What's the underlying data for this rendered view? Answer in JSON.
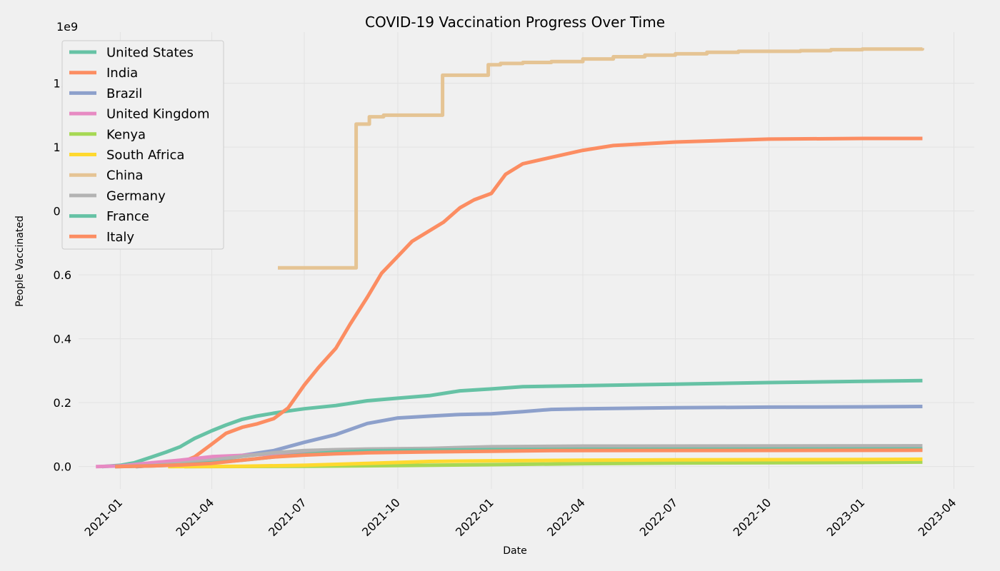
{
  "chart_data": {
    "type": "line",
    "title": "COVID-19 Vaccination Progress Over Time",
    "xlabel": "Date",
    "ylabel": "People Vaccinated",
    "y_multiplier_label": "1e9",
    "xlim": [
      "2020-11-21",
      "2023-04-21"
    ],
    "ylim": [
      -0.07,
      1.36
    ],
    "grid": true,
    "legend_position": "upper-left",
    "x_ticks": [
      "2021-01",
      "2021-04",
      "2021-07",
      "2021-10",
      "2022-01",
      "2022-04",
      "2022-07",
      "2022-10",
      "2023-01",
      "2023-04"
    ],
    "y_ticks": [
      "0.0",
      "0.2",
      "0.4",
      "0.6",
      "0.8",
      "1.0",
      "1.2"
    ],
    "y_tick_values": [
      0,
      0.2,
      0.4,
      0.6,
      0.8,
      1.0,
      1.2
    ],
    "series": [
      {
        "name": "United States",
        "color": "#66c2a5",
        "step": false,
        "points": [
          [
            "2020-12-14",
            0.0
          ],
          [
            "2021-01-01",
            0.004
          ],
          [
            "2021-01-15",
            0.012
          ],
          [
            "2021-02-01",
            0.03
          ],
          [
            "2021-02-15",
            0.045
          ],
          [
            "2021-03-01",
            0.062
          ],
          [
            "2021-03-15",
            0.088
          ],
          [
            "2021-04-01",
            0.112
          ],
          [
            "2021-04-15",
            0.13
          ],
          [
            "2021-05-01",
            0.148
          ],
          [
            "2021-05-15",
            0.158
          ],
          [
            "2021-06-01",
            0.167
          ],
          [
            "2021-06-15",
            0.174
          ],
          [
            "2021-07-01",
            0.181
          ],
          [
            "2021-08-01",
            0.191
          ],
          [
            "2021-09-01",
            0.206
          ],
          [
            "2021-10-01",
            0.214
          ],
          [
            "2021-11-01",
            0.222
          ],
          [
            "2021-12-01",
            0.237
          ],
          [
            "2022-01-01",
            0.243
          ],
          [
            "2022-02-01",
            0.25
          ],
          [
            "2022-04-01",
            0.253
          ],
          [
            "2022-07-01",
            0.258
          ],
          [
            "2022-10-01",
            0.263
          ],
          [
            "2023-01-01",
            0.267
          ],
          [
            "2023-03-01",
            0.269
          ]
        ]
      },
      {
        "name": "India",
        "color": "#fc8d62",
        "step": false,
        "points": [
          [
            "2021-01-16",
            0.0
          ],
          [
            "2021-02-01",
            0.003
          ],
          [
            "2021-02-15",
            0.008
          ],
          [
            "2021-03-01",
            0.012
          ],
          [
            "2021-03-15",
            0.03
          ],
          [
            "2021-04-01",
            0.07
          ],
          [
            "2021-04-15",
            0.104
          ],
          [
            "2021-05-01",
            0.123
          ],
          [
            "2021-05-15",
            0.133
          ],
          [
            "2021-06-01",
            0.15
          ],
          [
            "2021-06-15",
            0.183
          ],
          [
            "2021-07-01",
            0.255
          ],
          [
            "2021-07-15",
            0.31
          ],
          [
            "2021-08-01",
            0.37
          ],
          [
            "2021-08-15",
            0.445
          ],
          [
            "2021-09-01",
            0.53
          ],
          [
            "2021-09-15",
            0.605
          ],
          [
            "2021-10-01",
            0.658
          ],
          [
            "2021-10-15",
            0.705
          ],
          [
            "2021-11-01",
            0.738
          ],
          [
            "2021-11-15",
            0.765
          ],
          [
            "2021-12-01",
            0.81
          ],
          [
            "2021-12-15",
            0.835
          ],
          [
            "2022-01-01",
            0.855
          ],
          [
            "2022-01-15",
            0.915
          ],
          [
            "2022-02-01",
            0.948
          ],
          [
            "2022-03-01",
            0.968
          ],
          [
            "2022-04-01",
            0.99
          ],
          [
            "2022-05-01",
            1.005
          ],
          [
            "2022-07-01",
            1.016
          ],
          [
            "2022-10-01",
            1.025
          ],
          [
            "2023-01-01",
            1.027
          ],
          [
            "2023-03-01",
            1.027
          ]
        ]
      },
      {
        "name": "Brazil",
        "color": "#8da0cb",
        "step": false,
        "points": [
          [
            "2021-01-17",
            0.0
          ],
          [
            "2021-03-01",
            0.009
          ],
          [
            "2021-04-01",
            0.022
          ],
          [
            "2021-05-01",
            0.035
          ],
          [
            "2021-06-01",
            0.05
          ],
          [
            "2021-07-01",
            0.076
          ],
          [
            "2021-08-01",
            0.1
          ],
          [
            "2021-09-01",
            0.135
          ],
          [
            "2021-10-01",
            0.152
          ],
          [
            "2021-11-01",
            0.158
          ],
          [
            "2021-12-01",
            0.163
          ],
          [
            "2022-01-01",
            0.165
          ],
          [
            "2022-02-01",
            0.172
          ],
          [
            "2022-03-01",
            0.179
          ],
          [
            "2022-04-01",
            0.181
          ],
          [
            "2022-07-01",
            0.184
          ],
          [
            "2022-10-01",
            0.186
          ],
          [
            "2023-01-01",
            0.187
          ],
          [
            "2023-03-01",
            0.188
          ]
        ]
      },
      {
        "name": "United Kingdom",
        "color": "#e78ac3",
        "step": false,
        "points": [
          [
            "2020-12-08",
            0.0
          ],
          [
            "2021-01-01",
            0.002
          ],
          [
            "2021-02-01",
            0.012
          ],
          [
            "2021-03-01",
            0.02
          ],
          [
            "2021-04-01",
            0.031
          ],
          [
            "2021-05-01",
            0.035
          ],
          [
            "2021-06-01",
            0.04
          ],
          [
            "2021-07-01",
            0.046
          ],
          [
            "2021-09-01",
            0.048
          ],
          [
            "2022-01-01",
            0.05
          ],
          [
            "2022-06-01",
            0.051
          ],
          [
            "2023-03-01",
            0.052
          ]
        ]
      },
      {
        "name": "Kenya",
        "color": "#a6d854",
        "step": false,
        "points": [
          [
            "2021-03-05",
            0.0
          ],
          [
            "2021-07-01",
            0.001
          ],
          [
            "2021-10-01",
            0.003
          ],
          [
            "2022-01-01",
            0.006
          ],
          [
            "2022-04-01",
            0.009
          ],
          [
            "2022-07-01",
            0.011
          ],
          [
            "2023-01-01",
            0.013
          ],
          [
            "2023-03-01",
            0.014
          ]
        ]
      },
      {
        "name": "South Africa",
        "color": "#ffd92f",
        "step": false,
        "points": [
          [
            "2021-02-17",
            0.0
          ],
          [
            "2021-05-01",
            0.001
          ],
          [
            "2021-07-01",
            0.004
          ],
          [
            "2021-09-01",
            0.01
          ],
          [
            "2021-11-01",
            0.016
          ],
          [
            "2022-01-01",
            0.018
          ],
          [
            "2022-04-01",
            0.02
          ],
          [
            "2022-07-01",
            0.021
          ],
          [
            "2023-01-01",
            0.022
          ],
          [
            "2023-03-01",
            0.023
          ]
        ]
      },
      {
        "name": "China",
        "color": "#e5c494",
        "step": true,
        "points": [
          [
            "2021-06-05",
            0.622
          ],
          [
            "2021-08-20",
            0.622
          ],
          [
            "2021-08-21",
            1.072
          ],
          [
            "2021-09-01",
            1.072
          ],
          [
            "2021-09-03",
            1.095
          ],
          [
            "2021-09-15",
            1.095
          ],
          [
            "2021-09-17",
            1.1
          ],
          [
            "2021-11-13",
            1.1
          ],
          [
            "2021-11-14",
            1.225
          ],
          [
            "2021-12-28",
            1.225
          ],
          [
            "2021-12-29",
            1.258
          ],
          [
            "2022-01-10",
            1.262
          ],
          [
            "2022-02-01",
            1.265
          ],
          [
            "2022-03-01",
            1.268
          ],
          [
            "2022-04-01",
            1.276
          ],
          [
            "2022-05-01",
            1.283
          ],
          [
            "2022-06-01",
            1.288
          ],
          [
            "2022-07-01",
            1.292
          ],
          [
            "2022-08-01",
            1.297
          ],
          [
            "2022-09-01",
            1.3
          ],
          [
            "2022-11-01",
            1.302
          ],
          [
            "2022-12-01",
            1.305
          ],
          [
            "2023-01-01",
            1.307
          ],
          [
            "2023-03-01",
            1.31
          ]
        ]
      },
      {
        "name": "Germany",
        "color": "#b3b3b3",
        "step": false,
        "points": [
          [
            "2020-12-27",
            0.0
          ],
          [
            "2021-02-01",
            0.003
          ],
          [
            "2021-03-01",
            0.01
          ],
          [
            "2021-04-01",
            0.02
          ],
          [
            "2021-05-01",
            0.032
          ],
          [
            "2021-06-01",
            0.043
          ],
          [
            "2021-07-01",
            0.05
          ],
          [
            "2021-08-01",
            0.053
          ],
          [
            "2021-09-01",
            0.055
          ],
          [
            "2021-11-01",
            0.057
          ],
          [
            "2022-01-01",
            0.062
          ],
          [
            "2022-04-01",
            0.064
          ],
          [
            "2023-03-01",
            0.065
          ]
        ]
      },
      {
        "name": "France",
        "color": "#66c2a5",
        "step": false,
        "points": [
          [
            "2020-12-27",
            0.0
          ],
          [
            "2021-02-01",
            0.002
          ],
          [
            "2021-03-01",
            0.005
          ],
          [
            "2021-04-01",
            0.012
          ],
          [
            "2021-05-01",
            0.02
          ],
          [
            "2021-06-01",
            0.03
          ],
          [
            "2021-07-01",
            0.038
          ],
          [
            "2021-08-01",
            0.045
          ],
          [
            "2021-09-01",
            0.049
          ],
          [
            "2021-11-01",
            0.051
          ],
          [
            "2022-01-01",
            0.053
          ],
          [
            "2022-04-01",
            0.054
          ],
          [
            "2023-03-01",
            0.055
          ]
        ]
      },
      {
        "name": "Italy",
        "color": "#fc8d62",
        "step": false,
        "points": [
          [
            "2020-12-27",
            0.0
          ],
          [
            "2021-02-01",
            0.002
          ],
          [
            "2021-03-01",
            0.005
          ],
          [
            "2021-04-01",
            0.01
          ],
          [
            "2021-05-01",
            0.02
          ],
          [
            "2021-06-01",
            0.03
          ],
          [
            "2021-07-01",
            0.036
          ],
          [
            "2021-08-01",
            0.04
          ],
          [
            "2021-09-01",
            0.043
          ],
          [
            "2021-11-01",
            0.046
          ],
          [
            "2022-01-01",
            0.048
          ],
          [
            "2022-03-01",
            0.05
          ],
          [
            "2023-03-01",
            0.051
          ]
        ]
      }
    ]
  }
}
